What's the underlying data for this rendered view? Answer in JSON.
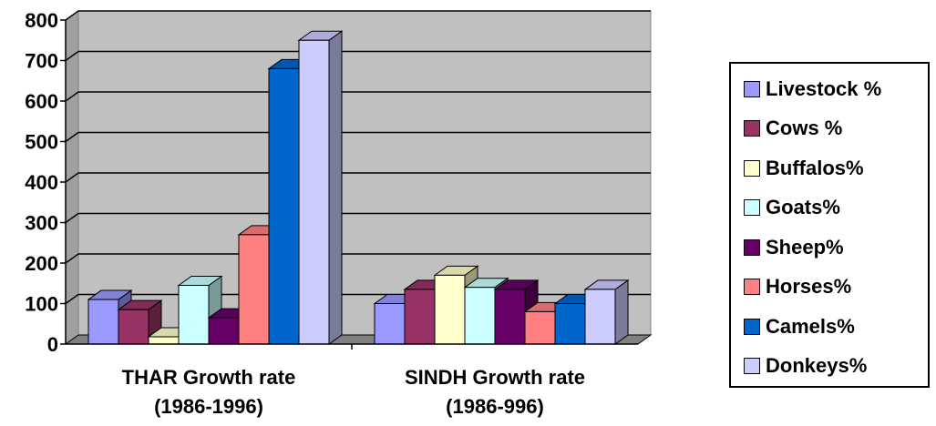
{
  "chart_data": {
    "type": "bar",
    "style": "3d-clustered-column",
    "categories": [
      [
        "THAR Growth rate",
        "(1986-1996)"
      ],
      [
        "SINDH Growth rate",
        "(1986-996)"
      ]
    ],
    "series": [
      {
        "name": "Livestock %",
        "values": [
          110,
          100
        ],
        "color": "#9999FF"
      },
      {
        "name": "Cows %",
        "values": [
          85,
          135
        ],
        "color": "#993366"
      },
      {
        "name": "Buffalos%",
        "values": [
          18,
          170
        ],
        "color": "#FFFFCC"
      },
      {
        "name": "Goats%",
        "values": [
          145,
          140
        ],
        "color": "#CCFFFF"
      },
      {
        "name": "Sheep%",
        "values": [
          65,
          135
        ],
        "color": "#660066"
      },
      {
        "name": "Horses%",
        "values": [
          270,
          80
        ],
        "color": "#FF8080"
      },
      {
        "name": "Camels%",
        "values": [
          680,
          100
        ],
        "color": "#0066CC"
      },
      {
        "name": "Donkeys%",
        "values": [
          750,
          135
        ],
        "color": "#CCCCFF"
      }
    ],
    "yticks": [
      "0",
      "100",
      "200",
      "300",
      "400",
      "500",
      "600",
      "700",
      "800"
    ],
    "ylim": [
      0,
      800
    ],
    "grid": true,
    "legend_position": "right",
    "plot_background": "#C0C0C0"
  }
}
